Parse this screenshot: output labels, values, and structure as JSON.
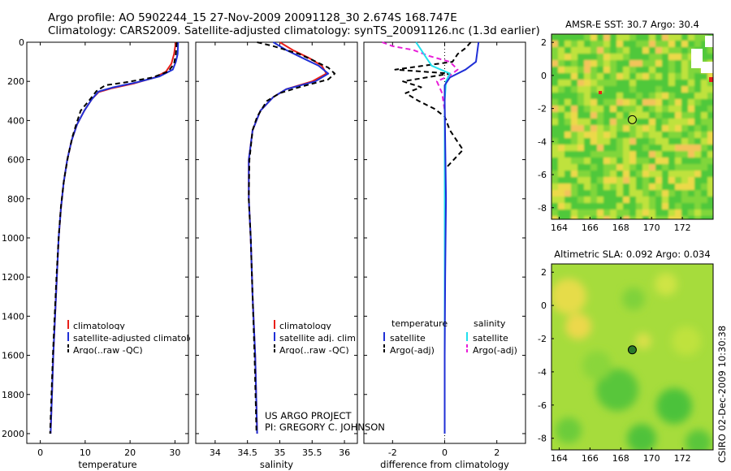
{
  "header": {
    "line1": "Argo profile: AO 5902244_15 27-Nov-2009 20091128_30 2.674S 168.747E",
    "line2": "Climatology: CARS2009. Satellite-adjusted climatology: synTS_20091126.nc (1.3d earlier)"
  },
  "colors": {
    "climatology": "#e8201a",
    "satellite": "#1f2fd6",
    "argo": "#000000",
    "sat_salinity": "#22e0ee",
    "argo_salinity": "#e81ed8",
    "marker": "#2a7a2a"
  },
  "depth_ticks": [
    "0",
    "200",
    "400",
    "600",
    "800",
    "1000",
    "1200",
    "1400",
    "1600",
    "1800",
    "2000"
  ],
  "chart_data": [
    {
      "id": "temperature",
      "type": "line",
      "xlabel": "temperature",
      "xlim": [
        -3,
        33
      ],
      "ylim": [
        2050,
        0
      ],
      "xticks": [
        "0",
        "10",
        "20",
        "30"
      ],
      "xtick_values": [
        0,
        10,
        20,
        30
      ],
      "series": [
        {
          "name": "climatology",
          "color": "red",
          "dash": "",
          "points": [
            [
              30.2,
              0
            ],
            [
              29.8,
              60
            ],
            [
              29.2,
              110
            ],
            [
              28.0,
              150
            ],
            [
              25.5,
              180
            ],
            [
              21.0,
              210
            ],
            [
              16.0,
              235
            ],
            [
              13.0,
              255
            ],
            [
              11.5,
              290
            ],
            [
              9.8,
              350
            ],
            [
              8.2,
              420
            ],
            [
              7.0,
              500
            ],
            [
              6.0,
              600
            ],
            [
              5.2,
              720
            ],
            [
              4.6,
              850
            ],
            [
              4.1,
              1000
            ],
            [
              3.7,
              1200
            ],
            [
              3.3,
              1400
            ],
            [
              2.9,
              1600
            ],
            [
              2.6,
              1800
            ],
            [
              2.3,
              2000
            ]
          ]
        },
        {
          "name": "satellite-adjusted climatology",
          "color": "blue",
          "dash": "",
          "points": [
            [
              30.7,
              0
            ],
            [
              30.6,
              60
            ],
            [
              30.2,
              100
            ],
            [
              29.5,
              140
            ],
            [
              26.5,
              175
            ],
            [
              21.5,
              205
            ],
            [
              16.0,
              232
            ],
            [
              13.0,
              252
            ],
            [
              11.5,
              290
            ],
            [
              9.8,
              350
            ],
            [
              8.2,
              420
            ],
            [
              7.0,
              500
            ],
            [
              6.0,
              600
            ],
            [
              5.2,
              720
            ],
            [
              4.6,
              850
            ],
            [
              4.1,
              1000
            ],
            [
              3.7,
              1200
            ],
            [
              3.3,
              1400
            ],
            [
              2.9,
              1600
            ],
            [
              2.6,
              1800
            ],
            [
              2.3,
              2000
            ]
          ]
        },
        {
          "name": "Argo(..raw -QC)",
          "color": "black",
          "dash": "6,4",
          "points": [
            [
              30.4,
              0
            ],
            [
              30.2,
              60
            ],
            [
              29.8,
              110
            ],
            [
              28.5,
              150
            ],
            [
              25.0,
              180
            ],
            [
              19.0,
              205
            ],
            [
              14.5,
              220
            ],
            [
              12.5,
              250
            ],
            [
              10.8,
              300
            ],
            [
              9.0,
              350
            ],
            [
              8.0,
              420
            ],
            [
              7.2,
              480
            ],
            [
              6.2,
              580
            ],
            [
              5.3,
              700
            ],
            [
              4.6,
              840
            ],
            [
              4.1,
              1000
            ],
            [
              3.6,
              1200
            ],
            [
              3.2,
              1400
            ],
            [
              2.8,
              1600
            ],
            [
              2.5,
              1800
            ],
            [
              2.2,
              2000
            ]
          ]
        }
      ],
      "legend": [
        "climatology",
        "satellite-adjusted climatology",
        "Argo(..raw -QC)"
      ]
    },
    {
      "id": "salinity",
      "type": "line",
      "xlabel": "salinity",
      "xlim": [
        33.7,
        36.2
      ],
      "ylim": [
        2050,
        0
      ],
      "xticks": [
        "34",
        "34.5",
        "35",
        "35.5",
        "36"
      ],
      "xtick_values": [
        34,
        34.5,
        35,
        35.5,
        36
      ],
      "series": [
        {
          "name": "climatology",
          "color": "red",
          "dash": "",
          "points": [
            [
              35.0,
              0
            ],
            [
              35.2,
              40
            ],
            [
              35.45,
              80
            ],
            [
              35.65,
              120
            ],
            [
              35.72,
              160
            ],
            [
              35.5,
              200
            ],
            [
              35.1,
              240
            ],
            [
              34.9,
              280
            ],
            [
              34.7,
              350
            ],
            [
              34.58,
              450
            ],
            [
              34.52,
              600
            ],
            [
              34.52,
              800
            ],
            [
              34.55,
              1000
            ],
            [
              34.58,
              1300
            ],
            [
              34.62,
              1600
            ],
            [
              34.65,
              2000
            ]
          ]
        },
        {
          "name": "satellite adj. clim.",
          "color": "blue",
          "dash": "",
          "points": [
            [
              34.9,
              0
            ],
            [
              35.1,
              40
            ],
            [
              35.35,
              80
            ],
            [
              35.6,
              120
            ],
            [
              35.75,
              160
            ],
            [
              35.55,
              200
            ],
            [
              35.1,
              240
            ],
            [
              34.9,
              280
            ],
            [
              34.7,
              350
            ],
            [
              34.58,
              450
            ],
            [
              34.52,
              600
            ],
            [
              34.52,
              800
            ],
            [
              34.55,
              1000
            ],
            [
              34.58,
              1300
            ],
            [
              34.62,
              1600
            ],
            [
              34.65,
              2000
            ]
          ]
        },
        {
          "name": "Argo(..raw -QC)",
          "color": "black",
          "dash": "6,4",
          "points": [
            [
              34.65,
              0
            ],
            [
              34.9,
              20
            ],
            [
              35.1,
              40
            ],
            [
              35.3,
              60
            ],
            [
              35.5,
              90
            ],
            [
              35.75,
              130
            ],
            [
              35.85,
              160
            ],
            [
              35.75,
              190
            ],
            [
              35.3,
              230
            ],
            [
              35.0,
              260
            ],
            [
              34.8,
              300
            ],
            [
              34.65,
              380
            ],
            [
              34.58,
              450
            ],
            [
              34.53,
              600
            ],
            [
              34.52,
              800
            ],
            [
              34.55,
              1000
            ],
            [
              34.58,
              1300
            ],
            [
              34.61,
              1600
            ],
            [
              34.64,
              2000
            ]
          ]
        }
      ],
      "legend": [
        "climatology",
        "satellite adj. clim.",
        "Argo(..raw -QC)"
      ]
    },
    {
      "id": "difference",
      "type": "line",
      "xlabel": "difference from climatology",
      "xlim": [
        -3.1,
        3.1
      ],
      "ylim": [
        2050,
        0
      ],
      "xticks": [
        "-2",
        "0",
        "2"
      ],
      "xtick_values": [
        -2,
        0,
        2
      ],
      "series": [
        {
          "name": "temperature satellite",
          "color": "blue",
          "dash": "",
          "points": [
            [
              1.3,
              0
            ],
            [
              1.25,
              50
            ],
            [
              1.2,
              100
            ],
            [
              0.8,
              140
            ],
            [
              0.2,
              180
            ],
            [
              0.0,
              220
            ],
            [
              0.0,
              300
            ],
            [
              0.02,
              500
            ],
            [
              0.05,
              800
            ],
            [
              0.02,
              1200
            ],
            [
              0.0,
              1600
            ],
            [
              0.0,
              2000
            ]
          ]
        },
        {
          "name": "temperature Argo(-adj)",
          "color": "black",
          "dash": "6,4",
          "points": [
            [
              1.0,
              0
            ],
            [
              0.8,
              30
            ],
            [
              0.5,
              60
            ],
            [
              0.3,
              100
            ],
            [
              -1.9,
              140
            ],
            [
              0.2,
              160
            ],
            [
              -1.6,
              200
            ],
            [
              -0.9,
              230
            ],
            [
              -1.5,
              260
            ],
            [
              -1.0,
              300
            ],
            [
              -0.4,
              340
            ],
            [
              0.0,
              380
            ],
            [
              0.2,
              450
            ],
            [
              0.7,
              550
            ],
            [
              0.0,
              650
            ],
            [
              0.0,
              800
            ],
            [
              0.0,
              1200
            ],
            [
              0.0,
              1600
            ],
            [
              0.0,
              2000
            ]
          ]
        },
        {
          "name": "salinity satellite",
          "color": "cyan",
          "dash": "",
          "points": [
            [
              -1.1,
              0
            ],
            [
              -0.9,
              40
            ],
            [
              -0.7,
              80
            ],
            [
              -0.5,
              120
            ],
            [
              0.2,
              160
            ],
            [
              0.05,
              200
            ],
            [
              0.0,
              300
            ],
            [
              0.0,
              600
            ],
            [
              0.0,
              1000
            ],
            [
              0.0,
              1500
            ],
            [
              0.0,
              2000
            ]
          ]
        },
        {
          "name": "salinity Argo(-adj)",
          "color": "magenta",
          "dash": "6,4",
          "points": [
            [
              -2.4,
              0
            ],
            [
              -2.0,
              20
            ],
            [
              -1.2,
              40
            ],
            [
              -0.6,
              70
            ],
            [
              0.2,
              100
            ],
            [
              0.5,
              140
            ],
            [
              0.2,
              170
            ],
            [
              -0.3,
              200
            ],
            [
              -0.1,
              260
            ],
            [
              0.0,
              350
            ],
            [
              0.0,
              600
            ],
            [
              0.0,
              1000
            ],
            [
              0.0,
              1600
            ],
            [
              0.0,
              2000
            ]
          ]
        }
      ],
      "legend_headers": [
        "temperature",
        "salinity"
      ],
      "legend_left": [
        "satellite",
        "Argo(-adj)"
      ],
      "legend_right": [
        "satellite",
        "Argo(-adj)"
      ]
    },
    {
      "id": "sst_map",
      "type": "heatmap",
      "title": "AMSR-E SST: 30.7 Argo: 30.4",
      "xlim": [
        163.5,
        174.0
      ],
      "ylim": [
        -8.7,
        2.5
      ],
      "xticks": [
        "164",
        "166",
        "168",
        "170",
        "172"
      ],
      "xtick_values": [
        164,
        166,
        168,
        170,
        172
      ],
      "yticks": [
        "2",
        "0",
        "-2",
        "-4",
        "-6",
        "-8"
      ],
      "ytick_values": [
        2,
        0,
        -2,
        -4,
        -6,
        -8
      ],
      "marker": {
        "lon": 168.747,
        "lat": -2.674,
        "fill": "none"
      }
    },
    {
      "id": "sla_map",
      "type": "heatmap",
      "title": "Altimetric SLA: 0.092 Argo: 0.034",
      "xlim": [
        163.5,
        174.0
      ],
      "ylim": [
        -8.7,
        2.5
      ],
      "xticks": [
        "164",
        "166",
        "168",
        "170",
        "172"
      ],
      "xtick_values": [
        164,
        166,
        168,
        170,
        172
      ],
      "yticks": [
        "2",
        "0",
        "-2",
        "-4",
        "-6",
        "-8"
      ],
      "ytick_values": [
        2,
        0,
        -2,
        -4,
        -6,
        -8
      ],
      "marker": {
        "lon": 168.747,
        "lat": -2.674,
        "fill": "green"
      }
    }
  ],
  "project": {
    "line1": "US ARGO PROJECT",
    "line2": "PI: GREGORY C. JOHNSON"
  },
  "credit": "CSIRO 02-Dec-2009 10:30:38"
}
